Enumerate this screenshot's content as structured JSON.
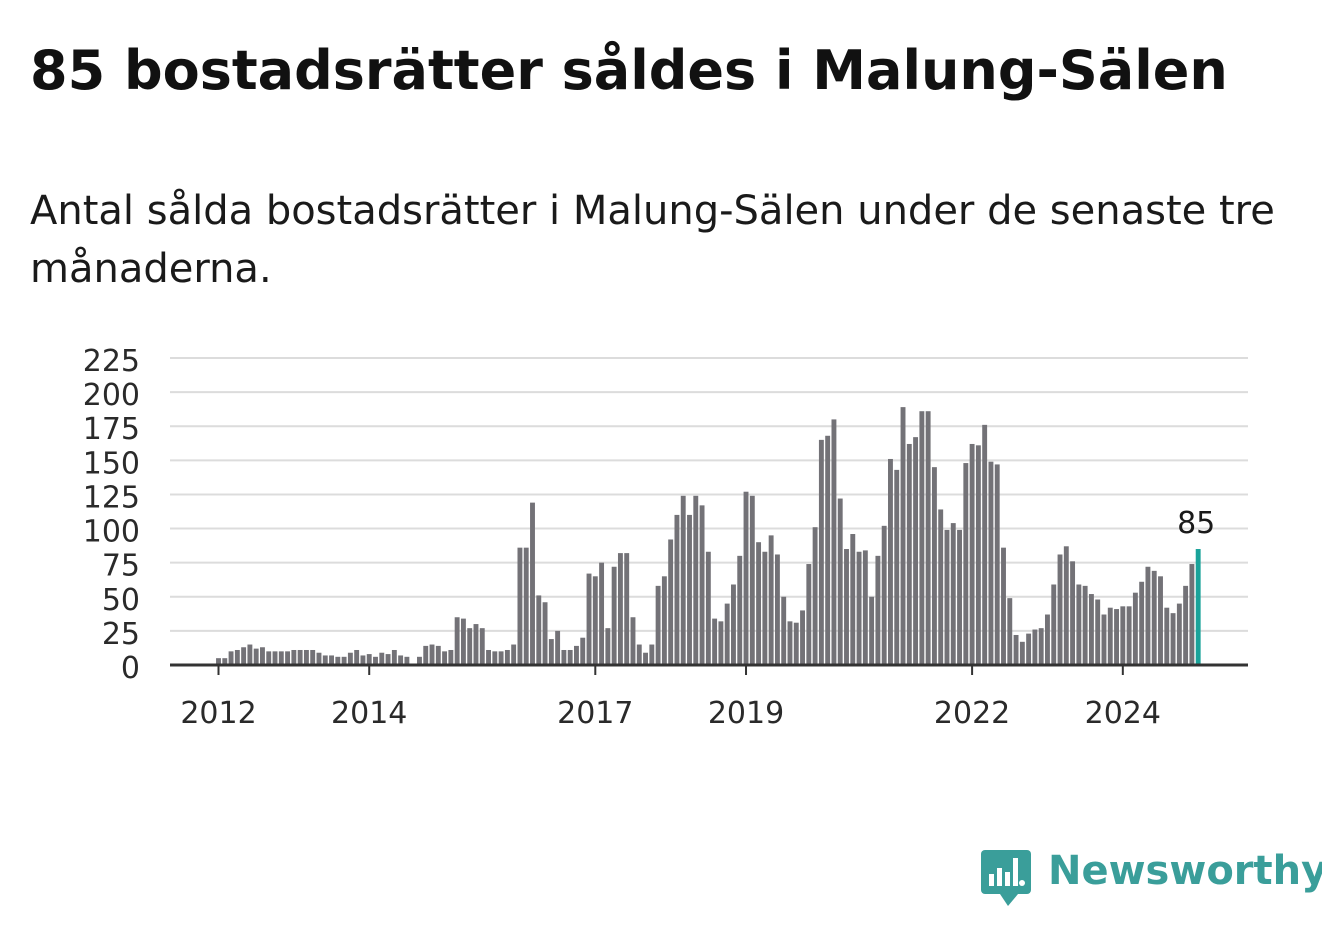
{
  "header": {
    "title": "85 bostadsrätter såldes i Malung-Sälen",
    "subtitle": "Antal sålda bostadsrätter i Malung-Sälen under de senaste tre månaderna."
  },
  "brand": {
    "name": "Newsworthy",
    "color": "#3a9e9a"
  },
  "colors": {
    "bar": "#737277",
    "highlight": "#1aa39a",
    "grid": "#dcdcdc",
    "axis": "#333333"
  },
  "chart_data": {
    "type": "bar",
    "title": "85 bostadsrätter såldes i Malung-Sälen",
    "subtitle": "Antal sålda bostadsrätter i Malung-Sälen under de senaste tre månaderna.",
    "start_label": "2011-01",
    "interval": "month",
    "y_ticks": [
      0,
      25,
      50,
      75,
      100,
      125,
      150,
      175,
      200,
      225
    ],
    "ylim": [
      0,
      225
    ],
    "x_tick_labels": [
      {
        "label": "2012",
        "index": 12
      },
      {
        "label": "2014",
        "index": 36
      },
      {
        "label": "2017",
        "index": 72
      },
      {
        "label": "2019",
        "index": 96
      },
      {
        "label": "2022",
        "index": 132
      },
      {
        "label": "2024",
        "index": 156
      }
    ],
    "grid": true,
    "highlight_last": true,
    "last_value_label": "85",
    "values": [
      0,
      0,
      0,
      0,
      0,
      0,
      0,
      0,
      0,
      0,
      0,
      0,
      5,
      5,
      10,
      11,
      13,
      15,
      12,
      13,
      10,
      10,
      10,
      10,
      11,
      11,
      11,
      11,
      9,
      7,
      7,
      6,
      6,
      9,
      11,
      7,
      8,
      6,
      9,
      8,
      11,
      7,
      6,
      0,
      6,
      14,
      15,
      14,
      10,
      11,
      35,
      34,
      27,
      30,
      27,
      11,
      10,
      10,
      11,
      15,
      86,
      86,
      119,
      51,
      46,
      19,
      25,
      11,
      11,
      14,
      20,
      67,
      65,
      75,
      27,
      72,
      82,
      82,
      35,
      15,
      9,
      15,
      58,
      65,
      92,
      110,
      124,
      110,
      124,
      117,
      83,
      34,
      32,
      45,
      59,
      80,
      127,
      124,
      90,
      83,
      95,
      81,
      50,
      32,
      31,
      40,
      74,
      101,
      165,
      168,
      180,
      122,
      85,
      96,
      83,
      84,
      50,
      80,
      102,
      151,
      143,
      189,
      162,
      167,
      186,
      186,
      145,
      114,
      99,
      104,
      99,
      148,
      162,
      161,
      176,
      149,
      147,
      86,
      49,
      22,
      17,
      23,
      26,
      27,
      37,
      59,
      81,
      87,
      76,
      59,
      58,
      52,
      48,
      37,
      42,
      41,
      43,
      43,
      53,
      61,
      72,
      69,
      65,
      42,
      38,
      45,
      58,
      74,
      85
    ]
  }
}
